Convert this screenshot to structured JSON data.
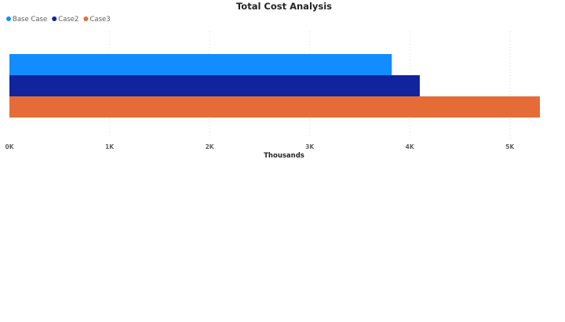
{
  "chart_data": {
    "type": "bar",
    "orientation": "horizontal",
    "title": "Total Cost Analysis",
    "xlabel": "Thousands",
    "ylabel": "",
    "xlim": [
      0,
      5300
    ],
    "xticks": [
      0,
      1000,
      2000,
      3000,
      4000,
      5000
    ],
    "xtick_labels": [
      "0K",
      "1K",
      "2K",
      "3K",
      "4K",
      "5K"
    ],
    "grid": true,
    "legend_position": "top-left",
    "series": [
      {
        "name": "Base Case",
        "value": 3820,
        "color": "#118DFF"
      },
      {
        "name": "Case2",
        "value": 4100,
        "color": "#12239E"
      },
      {
        "name": "Case3",
        "value": 5300,
        "color": "#E66C37"
      }
    ]
  }
}
